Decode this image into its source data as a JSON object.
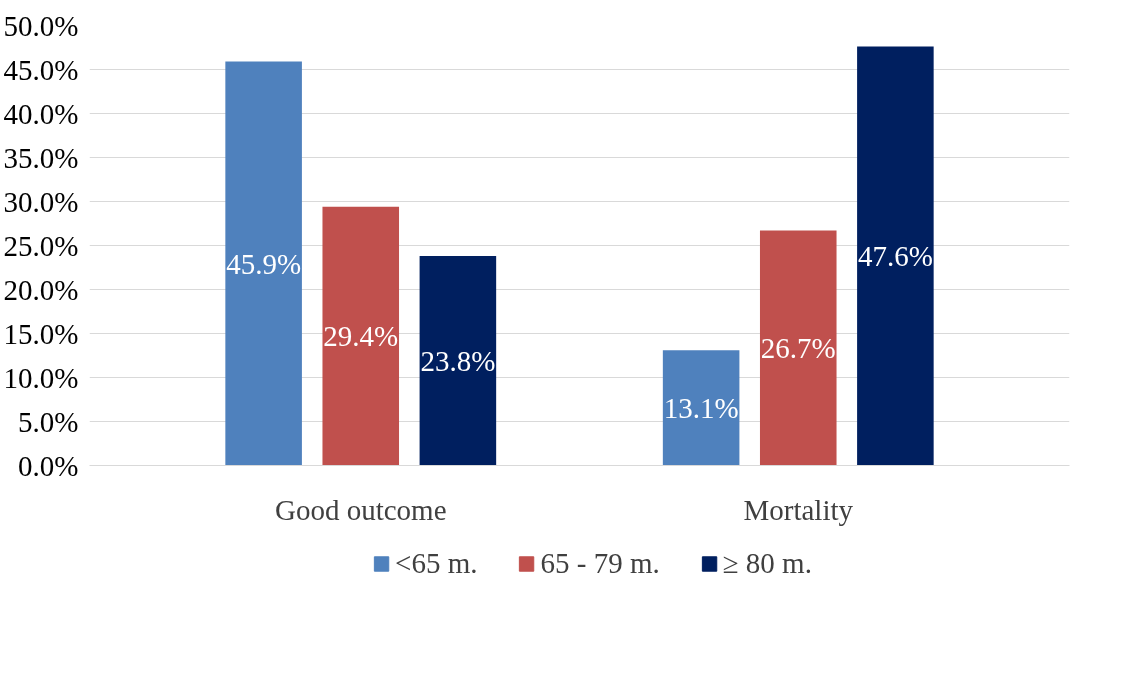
{
  "chart_data": {
    "type": "bar",
    "categories": [
      "Good outcome",
      "Mortality"
    ],
    "series": [
      {
        "name": "<65 m.",
        "color": "#4f81bd",
        "values": [
          45.9,
          13.1
        ],
        "value_labels": [
          "45.9%",
          "13.1%"
        ]
      },
      {
        "name": "65 - 79 m.",
        "color": "#c0504d",
        "values": [
          29.4,
          26.7
        ],
        "value_labels": [
          "29.4%",
          "26.7%"
        ]
      },
      {
        "name": "≥ 80 m.",
        "color": "#001f5f",
        "values": [
          23.8,
          47.6
        ],
        "value_labels": [
          "23.8%",
          "47.6%"
        ]
      }
    ],
    "ylim": [
      0,
      50
    ],
    "yticks": [
      {
        "value": 0,
        "label": "0.0%"
      },
      {
        "value": 5,
        "label": "5.0%"
      },
      {
        "value": 10,
        "label": "10.0%"
      },
      {
        "value": 15,
        "label": "15.0%"
      },
      {
        "value": 20,
        "label": "20.0%"
      },
      {
        "value": 25,
        "label": "25.0%"
      },
      {
        "value": 30,
        "label": "30.0%"
      },
      {
        "value": 35,
        "label": "35.0%"
      },
      {
        "value": 40,
        "label": "40.0%"
      },
      {
        "value": 45,
        "label": "45.0%"
      },
      {
        "value": 50,
        "label": "50.0%"
      }
    ],
    "grid": "y",
    "legend": "bottom"
  }
}
